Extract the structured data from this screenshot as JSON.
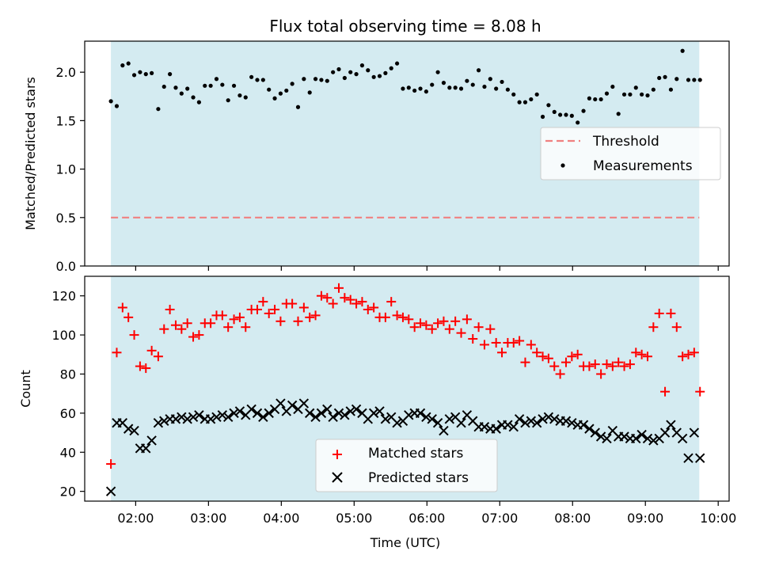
{
  "chart_data": {
    "type": "scatter",
    "title": "Flux total observing time = 8.08 h",
    "xlabel": "Time (UTC)",
    "xlim": [
      1.3,
      10.15
    ],
    "x_ticks": [
      2,
      3,
      4,
      5,
      6,
      7,
      8,
      9,
      10
    ],
    "x_tick_labels": [
      "02:00",
      "03:00",
      "04:00",
      "05:00",
      "06:00",
      "07:00",
      "08:00",
      "09:00",
      "10:00"
    ],
    "observing_window": {
      "start": 1.66,
      "end": 9.74,
      "color": "#d4ebf1"
    },
    "top_panel": {
      "ylabel": "Matched/Predicted stars",
      "ylim": [
        0,
        2.32
      ],
      "y_ticks": [
        "0.0",
        "0.5",
        "1.0",
        "1.5",
        "2.0"
      ],
      "threshold": {
        "name": "Threshold",
        "value": 0.5,
        "color": "#f08080"
      },
      "legend": {
        "location": "center-right",
        "entries": [
          "Threshold",
          "Measurements"
        ]
      },
      "series": [
        {
          "name": "Measurements",
          "color": "#000000",
          "x": [
            1.66,
            1.74,
            1.82,
            1.9,
            1.98,
            2.06,
            2.14,
            2.22,
            2.31,
            2.39,
            2.47,
            2.55,
            2.63,
            2.71,
            2.79,
            2.87,
            2.95,
            3.03,
            3.11,
            3.19,
            3.27,
            3.35,
            3.43,
            3.51,
            3.59,
            3.67,
            3.75,
            3.83,
            3.91,
            3.99,
            4.07,
            4.15,
            4.23,
            4.31,
            4.39,
            4.47,
            4.55,
            4.63,
            4.71,
            4.79,
            4.87,
            4.95,
            5.03,
            5.11,
            5.19,
            5.27,
            5.35,
            5.43,
            5.51,
            5.59,
            5.67,
            5.75,
            5.83,
            5.91,
            5.99,
            6.07,
            6.15,
            6.23,
            6.31,
            6.39,
            6.47,
            6.55,
            6.63,
            6.71,
            6.79,
            6.87,
            6.95,
            7.03,
            7.11,
            7.19,
            7.27,
            7.35,
            7.43,
            7.51,
            7.59,
            7.67,
            7.75,
            7.83,
            7.91,
            7.99,
            8.07,
            8.15,
            8.23,
            8.31,
            8.39,
            8.47,
            8.55,
            8.63,
            8.71,
            8.79,
            8.87,
            8.95,
            9.03,
            9.11,
            9.19,
            9.27,
            9.35,
            9.43,
            9.51,
            9.59,
            9.67,
            9.75
          ],
          "y": [
            1.7,
            1.65,
            2.07,
            2.09,
            1.97,
            2.0,
            1.98,
            1.99,
            1.62,
            1.85,
            1.98,
            1.84,
            1.78,
            1.83,
            1.74,
            1.69,
            1.86,
            1.86,
            1.93,
            1.87,
            1.71,
            1.86,
            1.76,
            1.74,
            1.95,
            1.92,
            1.92,
            1.82,
            1.73,
            1.78,
            1.81,
            1.88,
            1.64,
            1.93,
            1.79,
            1.93,
            1.92,
            1.91,
            2.0,
            2.03,
            1.94,
            2.0,
            1.98,
            2.07,
            2.02,
            1.95,
            1.96,
            1.99,
            2.04,
            2.09,
            1.83,
            1.84,
            1.81,
            1.83,
            1.8,
            1.87,
            2.0,
            1.89,
            1.84,
            1.84,
            1.83,
            1.91,
            1.87,
            2.02,
            1.85,
            1.93,
            1.83,
            1.9,
            1.82,
            1.77,
            1.69,
            1.69,
            1.72,
            1.77,
            1.54,
            1.66,
            1.59,
            1.56,
            1.56,
            1.55,
            1.48,
            1.6,
            1.73,
            1.72,
            1.72,
            1.78,
            1.85,
            1.57,
            1.77,
            1.77,
            1.84,
            1.77,
            1.76,
            1.82,
            1.94,
            1.95,
            1.82,
            1.93,
            2.22,
            1.92,
            1.92,
            1.92
          ]
        }
      ]
    },
    "bottom_panel": {
      "ylabel": "Count",
      "ylim": [
        15,
        130
      ],
      "y_ticks": [
        "20",
        "40",
        "60",
        "80",
        "100",
        "120"
      ],
      "legend": {
        "location": "lower-center",
        "entries": [
          "Matched stars",
          "Predicted stars"
        ]
      },
      "series": [
        {
          "name": "Matched stars",
          "marker": "plus",
          "color": "#ff0000",
          "x": [
            1.66,
            1.74,
            1.82,
            1.9,
            1.98,
            2.06,
            2.14,
            2.22,
            2.31,
            2.39,
            2.47,
            2.55,
            2.63,
            2.71,
            2.79,
            2.87,
            2.95,
            3.03,
            3.11,
            3.19,
            3.27,
            3.35,
            3.43,
            3.51,
            3.59,
            3.67,
            3.75,
            3.83,
            3.91,
            3.99,
            4.07,
            4.15,
            4.23,
            4.31,
            4.39,
            4.47,
            4.55,
            4.63,
            4.71,
            4.79,
            4.87,
            4.95,
            5.03,
            5.11,
            5.19,
            5.27,
            5.35,
            5.43,
            5.51,
            5.59,
            5.67,
            5.75,
            5.83,
            5.91,
            5.99,
            6.07,
            6.15,
            6.23,
            6.31,
            6.39,
            6.47,
            6.55,
            6.63,
            6.71,
            6.79,
            6.87,
            6.95,
            7.03,
            7.11,
            7.19,
            7.27,
            7.35,
            7.43,
            7.51,
            7.59,
            7.67,
            7.75,
            7.83,
            7.91,
            7.99,
            8.07,
            8.15,
            8.23,
            8.31,
            8.39,
            8.47,
            8.55,
            8.63,
            8.71,
            8.79,
            8.87,
            8.95,
            9.03,
            9.11,
            9.19,
            9.27,
            9.35,
            9.43,
            9.51,
            9.59,
            9.67,
            9.75
          ],
          "y": [
            34,
            91,
            114,
            109,
            100,
            84,
            83,
            92,
            89,
            103,
            113,
            105,
            103,
            106,
            99,
            100,
            106,
            106,
            110,
            110,
            104,
            108,
            109,
            104,
            113,
            113,
            117,
            111,
            113,
            107,
            116,
            116,
            107,
            114,
            109,
            110,
            120,
            119,
            116,
            124,
            119,
            118,
            116,
            117,
            113,
            114,
            109,
            109,
            117,
            110,
            109,
            108,
            104,
            106,
            105,
            103,
            106,
            107,
            103,
            107,
            101,
            108,
            98,
            104,
            95,
            103,
            96,
            91,
            96,
            96,
            97,
            86,
            95,
            91,
            89,
            88,
            84,
            80,
            86,
            89,
            90,
            84,
            84,
            85,
            80,
            85,
            84,
            86,
            84,
            85,
            91,
            90,
            89,
            104,
            111,
            71,
            111,
            104,
            89,
            90,
            91,
            71
          ]
        },
        {
          "name": "Predicted stars",
          "marker": "x",
          "color": "#000000",
          "x": [
            1.66,
            1.74,
            1.82,
            1.9,
            1.98,
            2.06,
            2.14,
            2.22,
            2.31,
            2.39,
            2.47,
            2.55,
            2.63,
            2.71,
            2.79,
            2.87,
            2.95,
            3.03,
            3.11,
            3.19,
            3.27,
            3.35,
            3.43,
            3.51,
            3.59,
            3.67,
            3.75,
            3.83,
            3.91,
            3.99,
            4.07,
            4.15,
            4.23,
            4.31,
            4.39,
            4.47,
            4.55,
            4.63,
            4.71,
            4.79,
            4.87,
            4.95,
            5.03,
            5.11,
            5.19,
            5.27,
            5.35,
            5.43,
            5.51,
            5.59,
            5.67,
            5.75,
            5.83,
            5.91,
            5.99,
            6.07,
            6.15,
            6.23,
            6.31,
            6.39,
            6.47,
            6.55,
            6.63,
            6.71,
            6.79,
            6.87,
            6.95,
            7.03,
            7.11,
            7.19,
            7.27,
            7.35,
            7.43,
            7.51,
            7.59,
            7.67,
            7.75,
            7.83,
            7.91,
            7.99,
            8.07,
            8.15,
            8.23,
            8.31,
            8.39,
            8.47,
            8.55,
            8.63,
            8.71,
            8.79,
            8.87,
            8.95,
            9.03,
            9.11,
            9.19,
            9.27,
            9.35,
            9.43,
            9.51,
            9.59,
            9.67,
            9.75
          ],
          "y": [
            20,
            55,
            55,
            52,
            51,
            42,
            42,
            46,
            55,
            56,
            57,
            57,
            58,
            57,
            58,
            59,
            57,
            57,
            58,
            59,
            58,
            60,
            61,
            59,
            62,
            60,
            58,
            60,
            62,
            65,
            61,
            64,
            62,
            65,
            60,
            58,
            60,
            62,
            58,
            60,
            59,
            61,
            62,
            60,
            57,
            60,
            61,
            57,
            58,
            55,
            56,
            59,
            60,
            60,
            58,
            57,
            55,
            51,
            57,
            58,
            55,
            59,
            56,
            53,
            53,
            52,
            52,
            54,
            54,
            53,
            57,
            55,
            56,
            55,
            57,
            58,
            57,
            56,
            56,
            55,
            54,
            54,
            52,
            50,
            48,
            47,
            51,
            48,
            48,
            47,
            47,
            49,
            47,
            46,
            47,
            50,
            54,
            50,
            47,
            37,
            50,
            37
          ]
        }
      ]
    }
  }
}
